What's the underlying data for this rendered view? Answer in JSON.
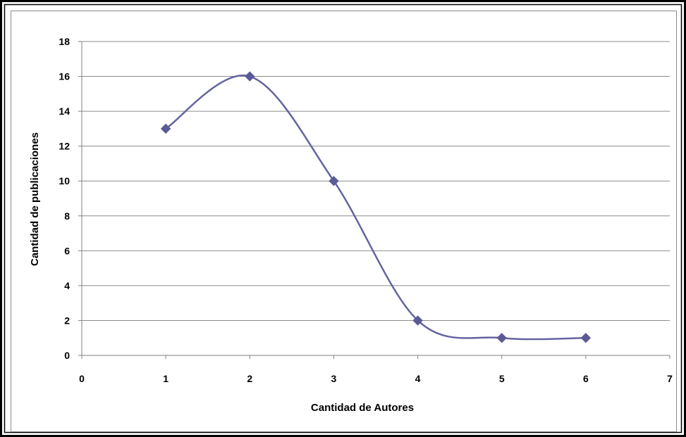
{
  "chart_data": {
    "type": "scatter",
    "style": "smoothed line with diamond markers",
    "x": [
      1,
      2,
      3,
      4,
      5,
      6
    ],
    "y": [
      13,
      16,
      10,
      2,
      1,
      1
    ],
    "series": [
      {
        "values": [
          13,
          16,
          10,
          2,
          1,
          1
        ]
      }
    ],
    "title": "",
    "xlabel": "Cantidad de Autores",
    "ylabel": "Cantidad de publicaciones",
    "xlim": [
      0,
      7
    ],
    "ylim": [
      0,
      18
    ],
    "x_ticks": [
      "0",
      "1",
      "2",
      "3",
      "4",
      "5",
      "6",
      "7"
    ],
    "y_ticks": [
      "0",
      "2",
      "4",
      "6",
      "8",
      "10",
      "12",
      "14",
      "16",
      "18"
    ],
    "grid": "horizontal",
    "legend": "none",
    "colors": {
      "series": "#6464A0",
      "marker": "#5A5A96",
      "grid": "#8C8C8C",
      "axis": "#7F7F7F",
      "frame": "#000000"
    }
  }
}
